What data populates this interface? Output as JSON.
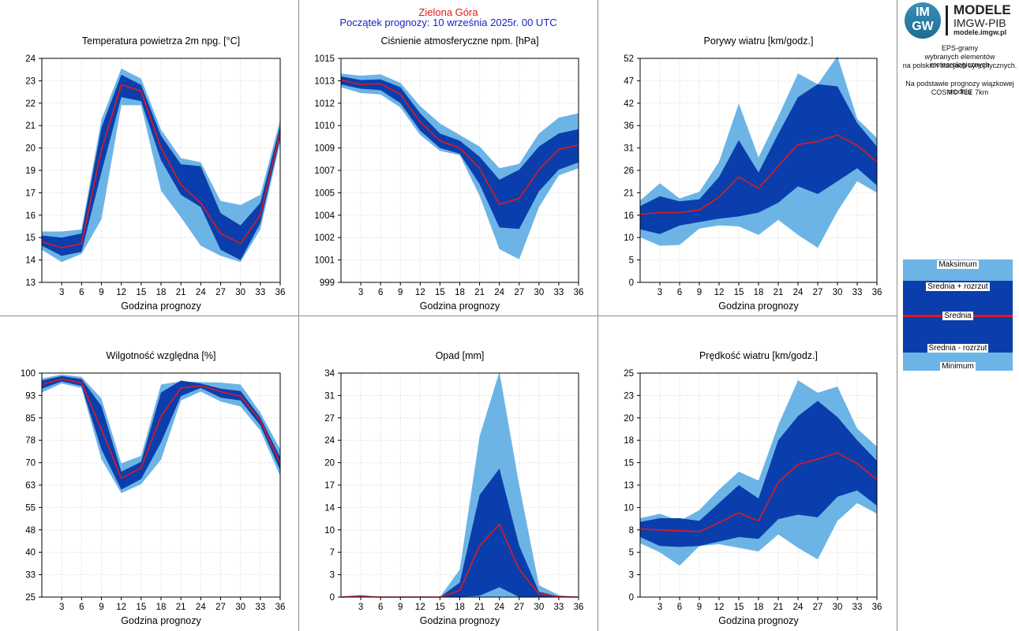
{
  "header": {
    "station": "Zielona Góra",
    "forecast_start": "Początek prognozy: 10 września 2025r. 00 UTC"
  },
  "logo": {
    "line1": "IM",
    "line2": "GW",
    "title": "MODELE",
    "subtitle": "IMGW-PIB",
    "url": "modele.imgw.pl"
  },
  "description": {
    "line1": "EPS-gramy",
    "line2": "wybranych elementów meteorologicznych",
    "line3": "na polskich stacjach  synoptycznych.",
    "line4": "Na podstawie prognozy wiązkowej modelu",
    "line5": "COSMO TLE 7km"
  },
  "legend": {
    "max": "Maksimum",
    "mean_plus": "Średnia + rozrzut",
    "mean": "Średnia",
    "mean_minus": "Średnia - rozrzut",
    "min": "Minimum"
  },
  "colors": {
    "outer_band": "#6cb4e6",
    "inner_band": "#0a3eac",
    "mean_line": "#e2191b",
    "separator": "#8c8c8c",
    "station": "#e2191b",
    "forecast_start": "#1a22c8"
  },
  "chart_data": [
    {
      "id": "temperature",
      "type": "area",
      "title": "Temperatura powietrza 2m npg. [°C]",
      "xlabel": "Godzina prognozy",
      "x": [
        0,
        3,
        6,
        9,
        12,
        15,
        18,
        21,
        24,
        27,
        30,
        33,
        36
      ],
      "xticks": [
        "3",
        "6",
        "9",
        "12",
        "15",
        "18",
        "21",
        "24",
        "27",
        "30",
        "33",
        "36"
      ],
      "ylim": [
        13,
        24
      ],
      "yticks": [
        "13",
        "14",
        "15",
        "16",
        "17",
        "19",
        "20",
        "21",
        "22",
        "23",
        "24"
      ],
      "series": [
        {
          "name": "Maksimum",
          "values": [
            15.5,
            15.5,
            15.6,
            21.0,
            23.5,
            23.0,
            20.5,
            19.1,
            18.9,
            17.0,
            16.8,
            17.3,
            21.0
          ]
        },
        {
          "name": "Średnia + rozrzut",
          "values": [
            15.3,
            15.2,
            15.4,
            20.6,
            23.2,
            22.7,
            20.2,
            18.8,
            18.7,
            16.4,
            15.8,
            16.9,
            20.7
          ]
        },
        {
          "name": "Średnia",
          "values": [
            15.0,
            14.7,
            14.9,
            19.5,
            22.7,
            22.4,
            19.6,
            17.8,
            16.9,
            15.4,
            14.9,
            16.3,
            20.4
          ]
        },
        {
          "name": "Średnia - rozrzut",
          "values": [
            14.8,
            14.3,
            14.5,
            18.4,
            22.1,
            21.9,
            19.0,
            17.3,
            16.7,
            14.6,
            14.1,
            15.9,
            20.1
          ]
        },
        {
          "name": "Minimum",
          "values": [
            14.6,
            14.0,
            14.4,
            16.1,
            21.7,
            21.7,
            17.5,
            16.2,
            14.8,
            14.3,
            14.0,
            15.6,
            19.9
          ]
        }
      ]
    },
    {
      "id": "pressure",
      "type": "area",
      "title": "Ciśnienie atmosferyczne npm. [hPa]",
      "xlabel": "Godzina prognozy",
      "x": [
        0,
        3,
        6,
        9,
        12,
        15,
        18,
        21,
        24,
        27,
        30,
        33,
        36
      ],
      "xticks": [
        "3",
        "6",
        "9",
        "12",
        "15",
        "18",
        "21",
        "24",
        "27",
        "30",
        "33",
        "36"
      ],
      "ylim": [
        999.5,
        1015
      ],
      "yticks": [
        "999",
        "1001",
        "1002",
        "1004",
        "1005",
        "1007",
        "1009",
        "1010",
        "1012",
        "1013",
        "1015"
      ],
      "series": [
        {
          "name": "Maksimum",
          "values": [
            1013.95,
            1013.8,
            1013.9,
            1013.3,
            1011.7,
            1010.5,
            1009.7,
            1008.9,
            1007.4,
            1007.7,
            1009.8,
            1010.9,
            1011.2
          ]
        },
        {
          "name": "Średnia + rozrzut",
          "values": [
            1013.75,
            1013.5,
            1013.55,
            1013.0,
            1011.2,
            1009.8,
            1009.3,
            1008.2,
            1006.6,
            1007.3,
            1008.9,
            1009.8,
            1010.1
          ]
        },
        {
          "name": "Średnia",
          "values": [
            1013.5,
            1013.2,
            1013.25,
            1012.5,
            1010.6,
            1009.3,
            1008.8,
            1007.4,
            1004.9,
            1005.3,
            1007.3,
            1008.7,
            1009.0
          ]
        },
        {
          "name": "Średnia - rozrzut",
          "values": [
            1013.2,
            1012.9,
            1012.8,
            1011.9,
            1010.0,
            1008.8,
            1008.4,
            1006.3,
            1003.3,
            1003.2,
            1005.8,
            1007.3,
            1007.8
          ]
        },
        {
          "name": "Minimum",
          "values": [
            1013.0,
            1012.6,
            1012.5,
            1011.6,
            1009.7,
            1008.6,
            1008.3,
            1005.5,
            1001.8,
            1001.1,
            1004.7,
            1006.9,
            1007.4
          ]
        }
      ]
    },
    {
      "id": "wind_gusts",
      "type": "area",
      "title": "Porywy wiatru [km/godz.]",
      "xlabel": "Godzina prognozy",
      "x": [
        0,
        3,
        6,
        9,
        12,
        15,
        18,
        21,
        24,
        27,
        30,
        33,
        36
      ],
      "xticks": [
        "3",
        "6",
        "9",
        "12",
        "15",
        "18",
        "21",
        "24",
        "27",
        "30",
        "33",
        "36"
      ],
      "ylim": [
        0,
        52
      ],
      "yticks": [
        "0",
        "5",
        "10",
        "16",
        "21",
        "26",
        "31",
        "36",
        "42",
        "47",
        "52"
      ],
      "series": [
        {
          "name": "Maksimum",
          "values": [
            19.0,
            23.0,
            19.5,
            21.0,
            28.0,
            41.5,
            29.0,
            38.5,
            48.5,
            46.0,
            52.5,
            38.0,
            33.5
          ]
        },
        {
          "name": "Średnia + rozrzut",
          "values": [
            17.7,
            20.0,
            18.8,
            19.3,
            24.5,
            33.0,
            25.5,
            34.5,
            43.0,
            46.0,
            45.5,
            37.0,
            31.5
          ]
        },
        {
          "name": "Średnia",
          "values": [
            15.8,
            16.2,
            16.2,
            16.8,
            19.8,
            24.5,
            21.8,
            27.0,
            32.0,
            32.7,
            34.2,
            31.8,
            28.0
          ]
        },
        {
          "name": "Średnia - rozrzut",
          "values": [
            12.3,
            11.2,
            13.2,
            14.0,
            14.8,
            15.3,
            16.2,
            18.5,
            22.3,
            20.5,
            23.5,
            26.5,
            22.5
          ]
        },
        {
          "name": "Minimum",
          "values": [
            10.5,
            8.5,
            8.7,
            12.5,
            13.2,
            13.0,
            11.0,
            14.5,
            11.0,
            8.0,
            16.5,
            23.5,
            20.8
          ]
        }
      ]
    },
    {
      "id": "humidity",
      "type": "area",
      "title": "Wilgotność względna [%]",
      "xlabel": "Godzina prognozy",
      "x": [
        0,
        3,
        6,
        9,
        12,
        15,
        18,
        21,
        24,
        27,
        30,
        33,
        36
      ],
      "xticks": [
        "3",
        "6",
        "9",
        "12",
        "15",
        "18",
        "21",
        "24",
        "27",
        "30",
        "33",
        "36"
      ],
      "ylim": [
        25,
        100
      ],
      "yticks": [
        "25",
        "33",
        "40",
        "48",
        "55",
        "63",
        "70",
        "78",
        "85",
        "93",
        "100"
      ],
      "series": [
        {
          "name": "Maksimum",
          "values": [
            98.2,
            99.5,
            98.7,
            91.5,
            69.8,
            72.3,
            96.2,
            97.2,
            97.0,
            96.8,
            96.2,
            86.8,
            74.5
          ]
        },
        {
          "name": "Średnia + rozrzut",
          "values": [
            97.5,
            99.0,
            98.0,
            89.0,
            67.0,
            70.3,
            93.5,
            97.5,
            96.5,
            94.8,
            94.0,
            85.2,
            71.8
          ]
        },
        {
          "name": "Średnia",
          "values": [
            96.2,
            98.0,
            96.7,
            81.2,
            64.8,
            68.2,
            85.5,
            95.0,
            95.8,
            93.8,
            92.3,
            84.2,
            69.8
          ]
        },
        {
          "name": "Średnia - rozrzut",
          "values": [
            94.8,
            97.2,
            95.7,
            74.5,
            61.0,
            64.5,
            76.8,
            92.3,
            95.0,
            91.8,
            90.8,
            82.5,
            67.5
          ]
        },
        {
          "name": "Minimum",
          "values": [
            93.5,
            96.5,
            95.0,
            71.2,
            59.8,
            62.8,
            71.0,
            90.8,
            93.8,
            90.5,
            88.8,
            80.8,
            65.5
          ]
        }
      ]
    },
    {
      "id": "precipitation",
      "type": "area",
      "title": "Opad [mm]",
      "xlabel": "Godzina prognozy",
      "x": [
        0,
        3,
        6,
        9,
        12,
        15,
        18,
        21,
        24,
        27,
        30,
        33,
        36
      ],
      "xticks": [
        "3",
        "6",
        "9",
        "12",
        "15",
        "18",
        "21",
        "24",
        "27",
        "30",
        "33",
        "36"
      ],
      "ylim": [
        0,
        34
      ],
      "yticks": [
        "0",
        "3",
        "7",
        "10",
        "14",
        "17",
        "20",
        "24",
        "27",
        "31",
        "34"
      ],
      "series": [
        {
          "name": "Maksimum",
          "values": [
            0.1,
            0.35,
            0.0,
            0.0,
            0.0,
            0.0,
            4.2,
            24.4,
            34.2,
            17.0,
            1.8,
            0.3,
            0.0
          ]
        },
        {
          "name": "Średnia + rozrzut",
          "values": [
            0.05,
            0.2,
            0.0,
            0.0,
            0.0,
            0.0,
            2.2,
            15.5,
            19.5,
            7.8,
            0.8,
            0.1,
            0.0
          ]
        },
        {
          "name": "Średnia",
          "values": [
            0.0,
            0.1,
            0.0,
            0.0,
            0.0,
            0.0,
            1.0,
            7.8,
            11.0,
            4.2,
            0.5,
            0.05,
            0.0
          ]
        },
        {
          "name": "Średnia - rozrzut",
          "values": [
            0.0,
            0.0,
            0.0,
            0.0,
            0.0,
            0.0,
            0.0,
            0.2,
            1.5,
            0.0,
            0.0,
            0.0,
            0.0
          ]
        },
        {
          "name": "Minimum",
          "values": [
            0.0,
            0.0,
            0.0,
            0.0,
            0.0,
            0.0,
            0.0,
            0.0,
            0.0,
            0.0,
            0.0,
            0.0,
            0.0
          ]
        }
      ]
    },
    {
      "id": "wind_speed",
      "type": "area",
      "title": "Prędkość wiatru [km/godz.]",
      "xlabel": "Godzina prognozy",
      "x": [
        0,
        3,
        6,
        9,
        12,
        15,
        18,
        21,
        24,
        27,
        30,
        33,
        36
      ],
      "xticks": [
        "3",
        "6",
        "9",
        "12",
        "15",
        "18",
        "21",
        "24",
        "27",
        "30",
        "33",
        "36"
      ],
      "ylim": [
        0,
        25
      ],
      "yticks": [
        "0",
        "3",
        "5",
        "8",
        "10",
        "13",
        "15",
        "18",
        "20",
        "23",
        "25"
      ],
      "series": [
        {
          "name": "Maksimum",
          "values": [
            8.8,
            9.3,
            8.5,
            9.7,
            12.0,
            14.0,
            13.0,
            19.2,
            24.2,
            22.8,
            23.5,
            18.8,
            16.8
          ]
        },
        {
          "name": "Średnia + rozrzut",
          "values": [
            8.4,
            8.8,
            8.8,
            8.5,
            10.5,
            12.5,
            11.0,
            17.5,
            20.2,
            21.9,
            20.1,
            17.5,
            15.2
          ]
        },
        {
          "name": "Średnia",
          "values": [
            7.6,
            7.5,
            7.4,
            7.3,
            8.3,
            9.4,
            8.5,
            12.8,
            14.8,
            15.4,
            16.1,
            14.9,
            13.1
          ]
        },
        {
          "name": "Średnia - rozrzut",
          "values": [
            6.7,
            5.7,
            5.6,
            5.7,
            6.2,
            6.7,
            6.5,
            8.7,
            9.2,
            8.9,
            11.2,
            11.9,
            10.2
          ]
        },
        {
          "name": "Minimum",
          "values": [
            6.0,
            5.0,
            3.5,
            5.7,
            5.9,
            5.5,
            5.1,
            7.0,
            5.5,
            4.2,
            8.5,
            10.5,
            9.3
          ]
        }
      ]
    }
  ]
}
